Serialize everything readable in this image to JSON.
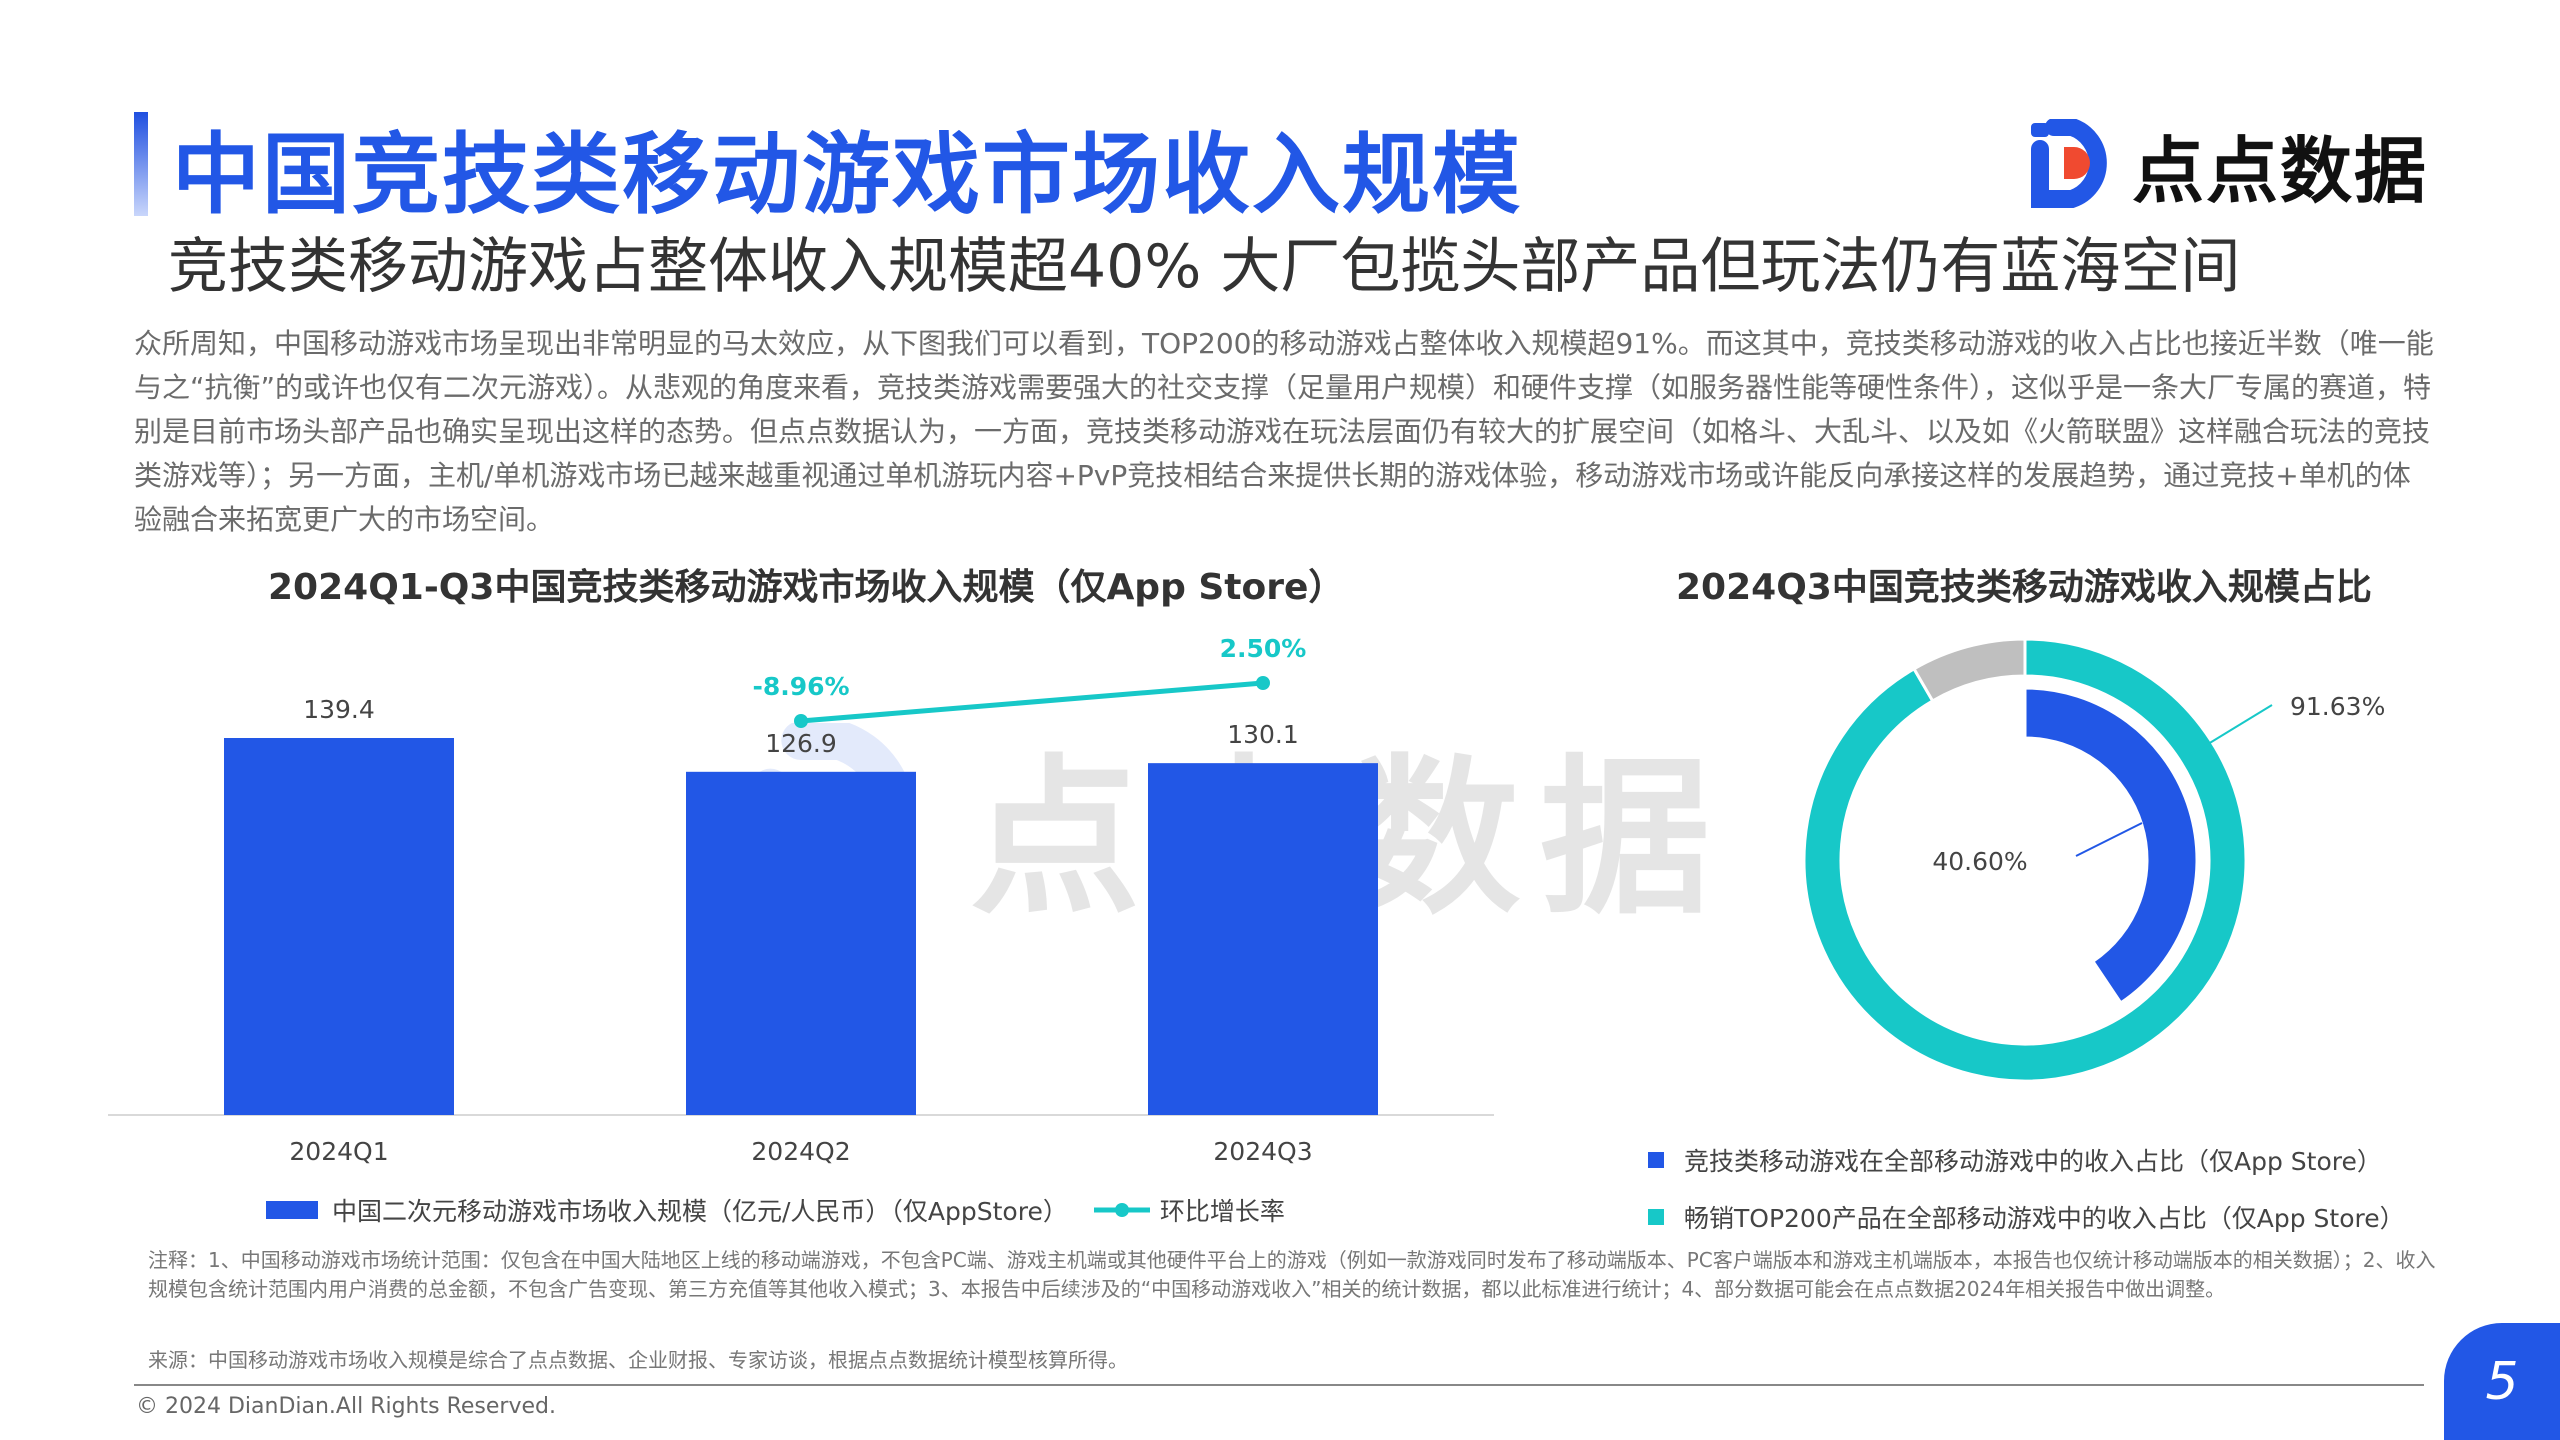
{
  "header": {
    "title": "中国竞技类移动游戏市场收入规模",
    "subtitle": "竞技类移动游戏占整体收入规模超40% 大厂包揽头部产品但玩法仍有蓝海空间",
    "logo_text": "点点数据"
  },
  "paragraph": "众所周知，中国移动游戏市场呈现出非常明显的马太效应，从下图我们可以看到，TOP200的移动游戏占整体收入规模超91%。而这其中，竞技类移动游戏的收入占比也接近半数（唯一能与之“抗衡”的或许也仅有二次元游戏）。从悲观的角度来看，竞技类游戏需要强大的社交支撑（足量用户规模）和硬件支撑（如服务器性能等硬性条件），这似乎是一条大厂专属的赛道，特别是目前市场头部产品也确实呈现出这样的态势。但点点数据认为，一方面，竞技类移动游戏在玩法层面仍有较大的扩展空间（如格斗、大乱斗、以及如《火箭联盟》这样融合玩法的竞技类游戏等）；另一方面，主机/单机游戏市场已越来越重视通过单机游玩内容+PvP竞技相结合来提供长期的游戏体验，移动游戏市场或许能反向承接这样的发展趋势，通过竞技+单机的体验融合来拓宽更广大的市场空间。",
  "colors": {
    "blue": "#2257e6",
    "teal": "#17c8c8",
    "gray": "#bfbfbf",
    "title": "#2257e6"
  },
  "chart_data": [
    {
      "type": "bar",
      "title": "2024Q1-Q3中国竞技类移动游戏市场收入规模（仅App Store）",
      "categories": [
        "2024Q1",
        "2024Q2",
        "2024Q3"
      ],
      "series": [
        {
          "name": "中国二次元移动游戏市场收入规模（亿元/人民币）（仅AppStore）",
          "type": "bar",
          "values": [
            139.4,
            126.9,
            130.1
          ],
          "labels": [
            "139.4",
            "126.9",
            "130.1"
          ]
        },
        {
          "name": "环比增长率",
          "type": "line",
          "values": [
            null,
            -8.96,
            2.5
          ],
          "labels": [
            "",
            "-8.96%",
            "2.50%"
          ]
        }
      ],
      "ylim": [
        0,
        160
      ],
      "grid": false,
      "legend": "bottom"
    },
    {
      "type": "pie",
      "title": "2024Q3中国竞技类移动游戏收入规模占比",
      "rings": [
        {
          "name": "畅销TOP200产品在全部移动游戏中的收入占比（仅App Store）",
          "value": 91.63,
          "label": "91.63%"
        },
        {
          "name": "竞技类移动游戏在全部移动游戏中的收入占比（仅App Store）",
          "value": 40.6,
          "label": "40.60%"
        }
      ],
      "legend": "bottom"
    }
  ],
  "notes": "注释：1、中国移动游戏市场统计范围：仅包含在中国大陆地区上线的移动端游戏，不包含PC端、游戏主机端或其他硬件平台上的游戏（例如一款游戏同时发布了移动端版本、PC客户端版本和游戏主机端版本，本报告也仅统计移动端版本的相关数据）；2、收入规模包含统计范围内用户消费的总金额，不包含广告变现、第三方充值等其他收入模式；3、本报告中后续涉及的“中国移动游戏收入”相关的统计数据，都以此标准进行统计；4、部分数据可能会在点点数据2024年相关报告中做出调整。",
  "source": "来源：中国移动游戏市场收入规模是综合了点点数据、企业财报、专家访谈，根据点点数据统计模型核算所得。",
  "footer": {
    "copyright": "© 2024 DianDian.All Rights Reserved.",
    "page": "5"
  }
}
